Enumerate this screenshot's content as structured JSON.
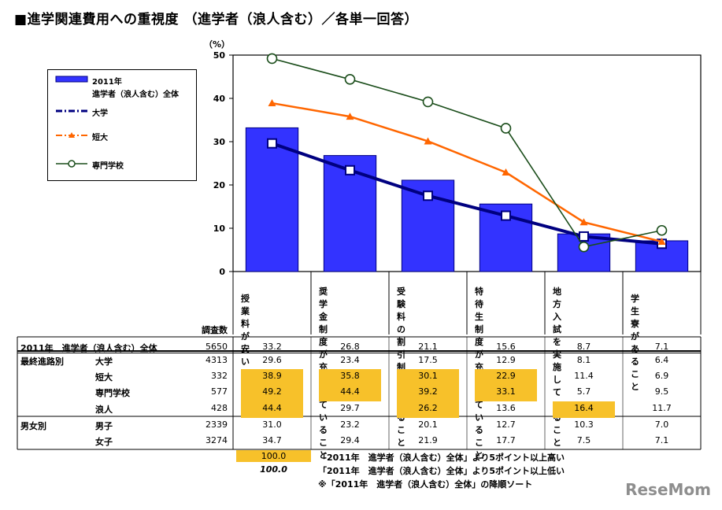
{
  "title": "■進学関連費用への重視度 （進学者（浪人含む）／各単一回答）",
  "chart_data": {
    "type": "bar",
    "unit_label": "（%）",
    "ylim": [
      0,
      50
    ],
    "yticks": [
      "0",
      "10",
      "20",
      "30",
      "40",
      "50"
    ],
    "categories": [
      "授業料が\n安いこと",
      "奨学金制度が\n充実している\nこと",
      "受験料の\n割引制度が\nあること",
      "特待生制度が\n充実している\nこと",
      "地方入試を\n実施している\nこと",
      "学生寮が\nあること"
    ],
    "series": [
      {
        "name": "2011年\n進学者（浪人含む）全体",
        "kind": "bar",
        "color": "#3333ff",
        "values": [
          33.2,
          26.8,
          21.1,
          15.6,
          8.7,
          7.1
        ]
      },
      {
        "name": "大学",
        "kind": "line",
        "color": "#000080",
        "marker": "square",
        "values": [
          29.6,
          23.4,
          17.5,
          12.9,
          8.1,
          6.4
        ]
      },
      {
        "name": "短大",
        "kind": "line",
        "color": "#ff6600",
        "marker": "triangle",
        "values": [
          38.9,
          35.8,
          30.1,
          22.9,
          11.4,
          6.9
        ]
      },
      {
        "name": "専門学校",
        "kind": "line",
        "color": "#1a4d1a",
        "marker": "circle",
        "values": [
          49.2,
          44.4,
          39.2,
          33.1,
          5.7,
          9.5
        ]
      }
    ]
  },
  "legend": {
    "items": [
      {
        "label_line1": "2011年",
        "label_line2": "進学者（浪人含む）全体"
      },
      {
        "label_line1": "大学"
      },
      {
        "label_line1": "短大"
      },
      {
        "label_line1": "専門学校"
      }
    ]
  },
  "table": {
    "count_header": "調査数",
    "rows": [
      {
        "group": "",
        "label": "2011年　進学者（浪人含む）全体",
        "n": "5650",
        "values": [
          "33.2",
          "26.8",
          "21.1",
          "15.6",
          "8.7",
          "7.1"
        ],
        "hl": [
          false,
          false,
          false,
          false,
          false,
          false
        ]
      },
      {
        "group": "最終進路別",
        "label": "大学",
        "n": "4313",
        "values": [
          "29.6",
          "23.4",
          "17.5",
          "12.9",
          "8.1",
          "6.4"
        ],
        "hl": [
          false,
          false,
          false,
          false,
          false,
          false
        ]
      },
      {
        "group": "",
        "label": "短大",
        "n": "332",
        "values": [
          "38.9",
          "35.8",
          "30.1",
          "22.9",
          "11.4",
          "6.9"
        ],
        "hl": [
          true,
          true,
          true,
          true,
          false,
          false
        ]
      },
      {
        "group": "",
        "label": "専門学校",
        "n": "577",
        "values": [
          "49.2",
          "44.4",
          "39.2",
          "33.1",
          "5.7",
          "9.5"
        ],
        "hl": [
          true,
          true,
          true,
          true,
          false,
          false
        ]
      },
      {
        "group": "",
        "label": "浪人",
        "n": "428",
        "values": [
          "44.4",
          "29.7",
          "26.2",
          "13.6",
          "16.4",
          "11.7"
        ],
        "hl": [
          true,
          false,
          true,
          false,
          true,
          false
        ]
      },
      {
        "group": "男女別",
        "label": "男子",
        "n": "2339",
        "values": [
          "31.0",
          "23.2",
          "20.1",
          "12.7",
          "10.3",
          "7.0"
        ],
        "hl": [
          false,
          false,
          false,
          false,
          false,
          false
        ]
      },
      {
        "group": "",
        "label": "女子",
        "n": "3274",
        "values": [
          "34.7",
          "29.4",
          "21.9",
          "17.7",
          "7.5",
          "7.1"
        ],
        "hl": [
          false,
          false,
          false,
          false,
          false,
          false
        ]
      }
    ]
  },
  "notes": {
    "high_sample": "100.0",
    "high_text": "「2011年　進学者（浪人含む）全体」より5ポイント以上高い",
    "low_sample": "100.0",
    "low_text": "「2011年　進学者（浪人含む）全体」より5ポイント以上低い",
    "sort_text": "※「2011年　進学者（浪人含む）全体」の降順ソート"
  },
  "watermark": {
    "brand": "ReseMom"
  }
}
